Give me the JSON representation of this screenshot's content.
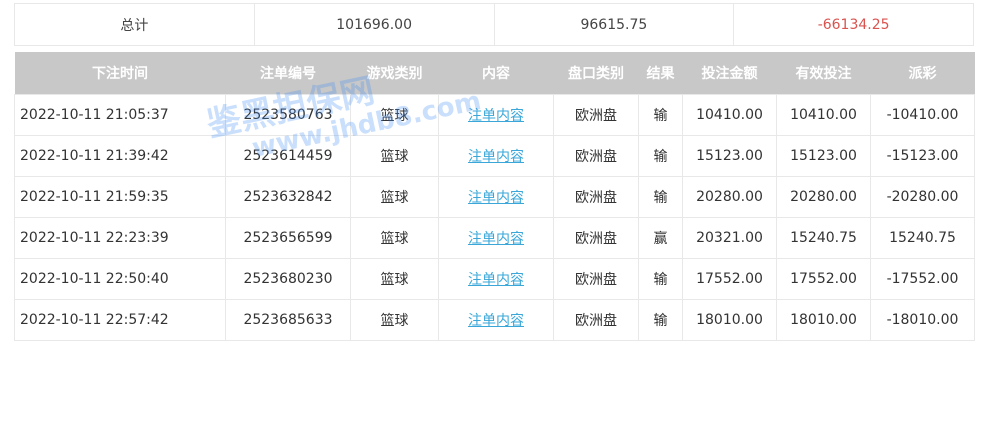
{
  "summary": {
    "label": "总计",
    "bet_total": "101696.00",
    "valid_total": "96615.75",
    "payout_total": "-66134.25"
  },
  "headers": [
    "下注时间",
    "注单编号",
    "游戏类别",
    "内容",
    "盘口类别",
    "结果",
    "投注金额",
    "有效投注",
    "派彩"
  ],
  "rows": [
    {
      "time": "2022-10-11 21:05:37",
      "id": "2523580763",
      "game": "篮球",
      "content": "注单内容",
      "market": "欧洲盘",
      "result": "输",
      "bet": "10410.00",
      "valid": "10410.00",
      "payout": "-10410.00"
    },
    {
      "time": "2022-10-11 21:39:42",
      "id": "2523614459",
      "game": "篮球",
      "content": "注单内容",
      "market": "欧洲盘",
      "result": "输",
      "bet": "15123.00",
      "valid": "15123.00",
      "payout": "-15123.00"
    },
    {
      "time": "2022-10-11 21:59:35",
      "id": "2523632842",
      "game": "篮球",
      "content": "注单内容",
      "market": "欧洲盘",
      "result": "输",
      "bet": "20280.00",
      "valid": "20280.00",
      "payout": "-20280.00"
    },
    {
      "time": "2022-10-11 22:23:39",
      "id": "2523656599",
      "game": "篮球",
      "content": "注单内容",
      "market": "欧洲盘",
      "result": "赢",
      "bet": "20321.00",
      "valid": "15240.75",
      "payout": "15240.75"
    },
    {
      "time": "2022-10-11 22:50:40",
      "id": "2523680230",
      "game": "篮球",
      "content": "注单内容",
      "market": "欧洲盘",
      "result": "输",
      "bet": "17552.00",
      "valid": "17552.00",
      "payout": "-17552.00"
    },
    {
      "time": "2022-10-11 22:57:42",
      "id": "2523685633",
      "game": "篮球",
      "content": "注单内容",
      "market": "欧洲盘",
      "result": "输",
      "bet": "18010.00",
      "valid": "18010.00",
      "payout": "-18010.00"
    }
  ],
  "watermark": {
    "text1": "鉴黑担保网",
    "text2": "www.jhdb8.com"
  },
  "colors": {
    "negative": "#e0474c",
    "link": "#3aa7d8",
    "header_bg": "#c8c8c8"
  }
}
